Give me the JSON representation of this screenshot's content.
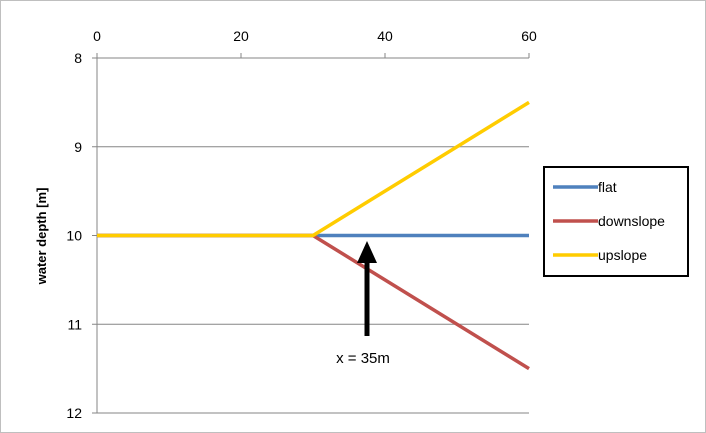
{
  "chart_data": {
    "type": "line",
    "xlabel": "",
    "ylabel": "water depth [m]",
    "xlim": [
      0,
      60
    ],
    "ylim": [
      8,
      12
    ],
    "y_inverted": true,
    "x_axis_position": "top",
    "x_ticks": [
      0,
      20,
      40,
      60
    ],
    "y_ticks": [
      8,
      9,
      10,
      11,
      12
    ],
    "grid": "horizontal",
    "legend_position": "right",
    "series": [
      {
        "name": "flat",
        "color": "#4f81bd",
        "x": [
          0,
          30,
          60
        ],
        "y": [
          10,
          10,
          10
        ]
      },
      {
        "name": "downslope",
        "color": "#c0504d",
        "x": [
          0,
          30,
          60
        ],
        "y": [
          10,
          10,
          11.5
        ]
      },
      {
        "name": "upslope",
        "color": "#ffcc00",
        "x": [
          0,
          30,
          60
        ],
        "y": [
          10,
          10,
          8.5
        ]
      }
    ],
    "annotation": {
      "text": "x = 35m",
      "x": 35
    }
  }
}
